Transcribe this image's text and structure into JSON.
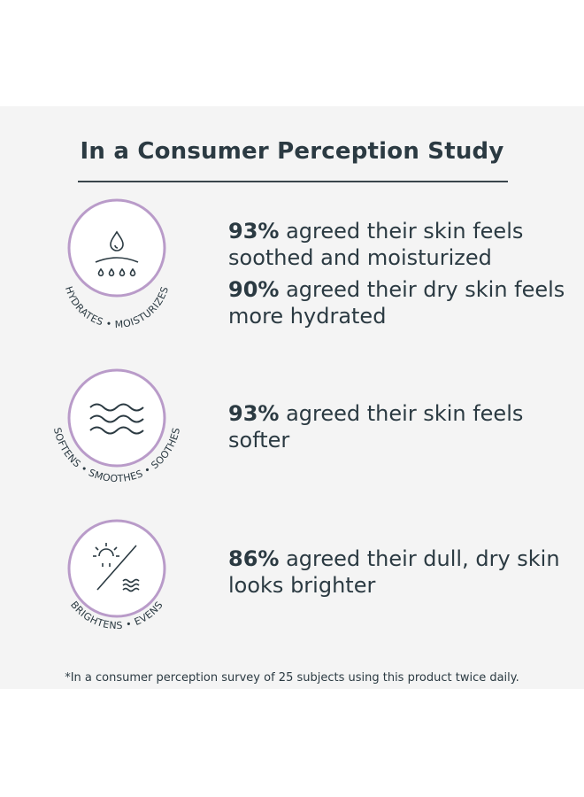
{
  "title": "In a Consumer Perception Study",
  "rows": [
    {
      "badge_label": "HYDRATES • MOISTURIZES",
      "icon": "droplet-icon",
      "stats": [
        {
          "value": "93%",
          "text": " agreed their skin feels soothed and moisturized"
        },
        {
          "value": "90%",
          "text": " agreed their dry skin feels more hydrated"
        }
      ]
    },
    {
      "badge_label": "SOFTENS • SMOOTHES • SOOTHES",
      "icon": "waves-icon",
      "stats": [
        {
          "value": "93%",
          "text": " agreed their skin feels softer"
        }
      ]
    },
    {
      "badge_label": "BRIGHTENS • EVENS",
      "icon": "sun-waves-icon",
      "stats": [
        {
          "value": "86%",
          "text": " agreed their dull, dry skin looks brighter"
        }
      ]
    }
  ],
  "footnote": "*In a consumer perception survey of 25 subjects using this product twice daily.",
  "colors": {
    "ring": "#b99bc9",
    "text": "#2b3a42",
    "panel": "#f4f4f4"
  }
}
